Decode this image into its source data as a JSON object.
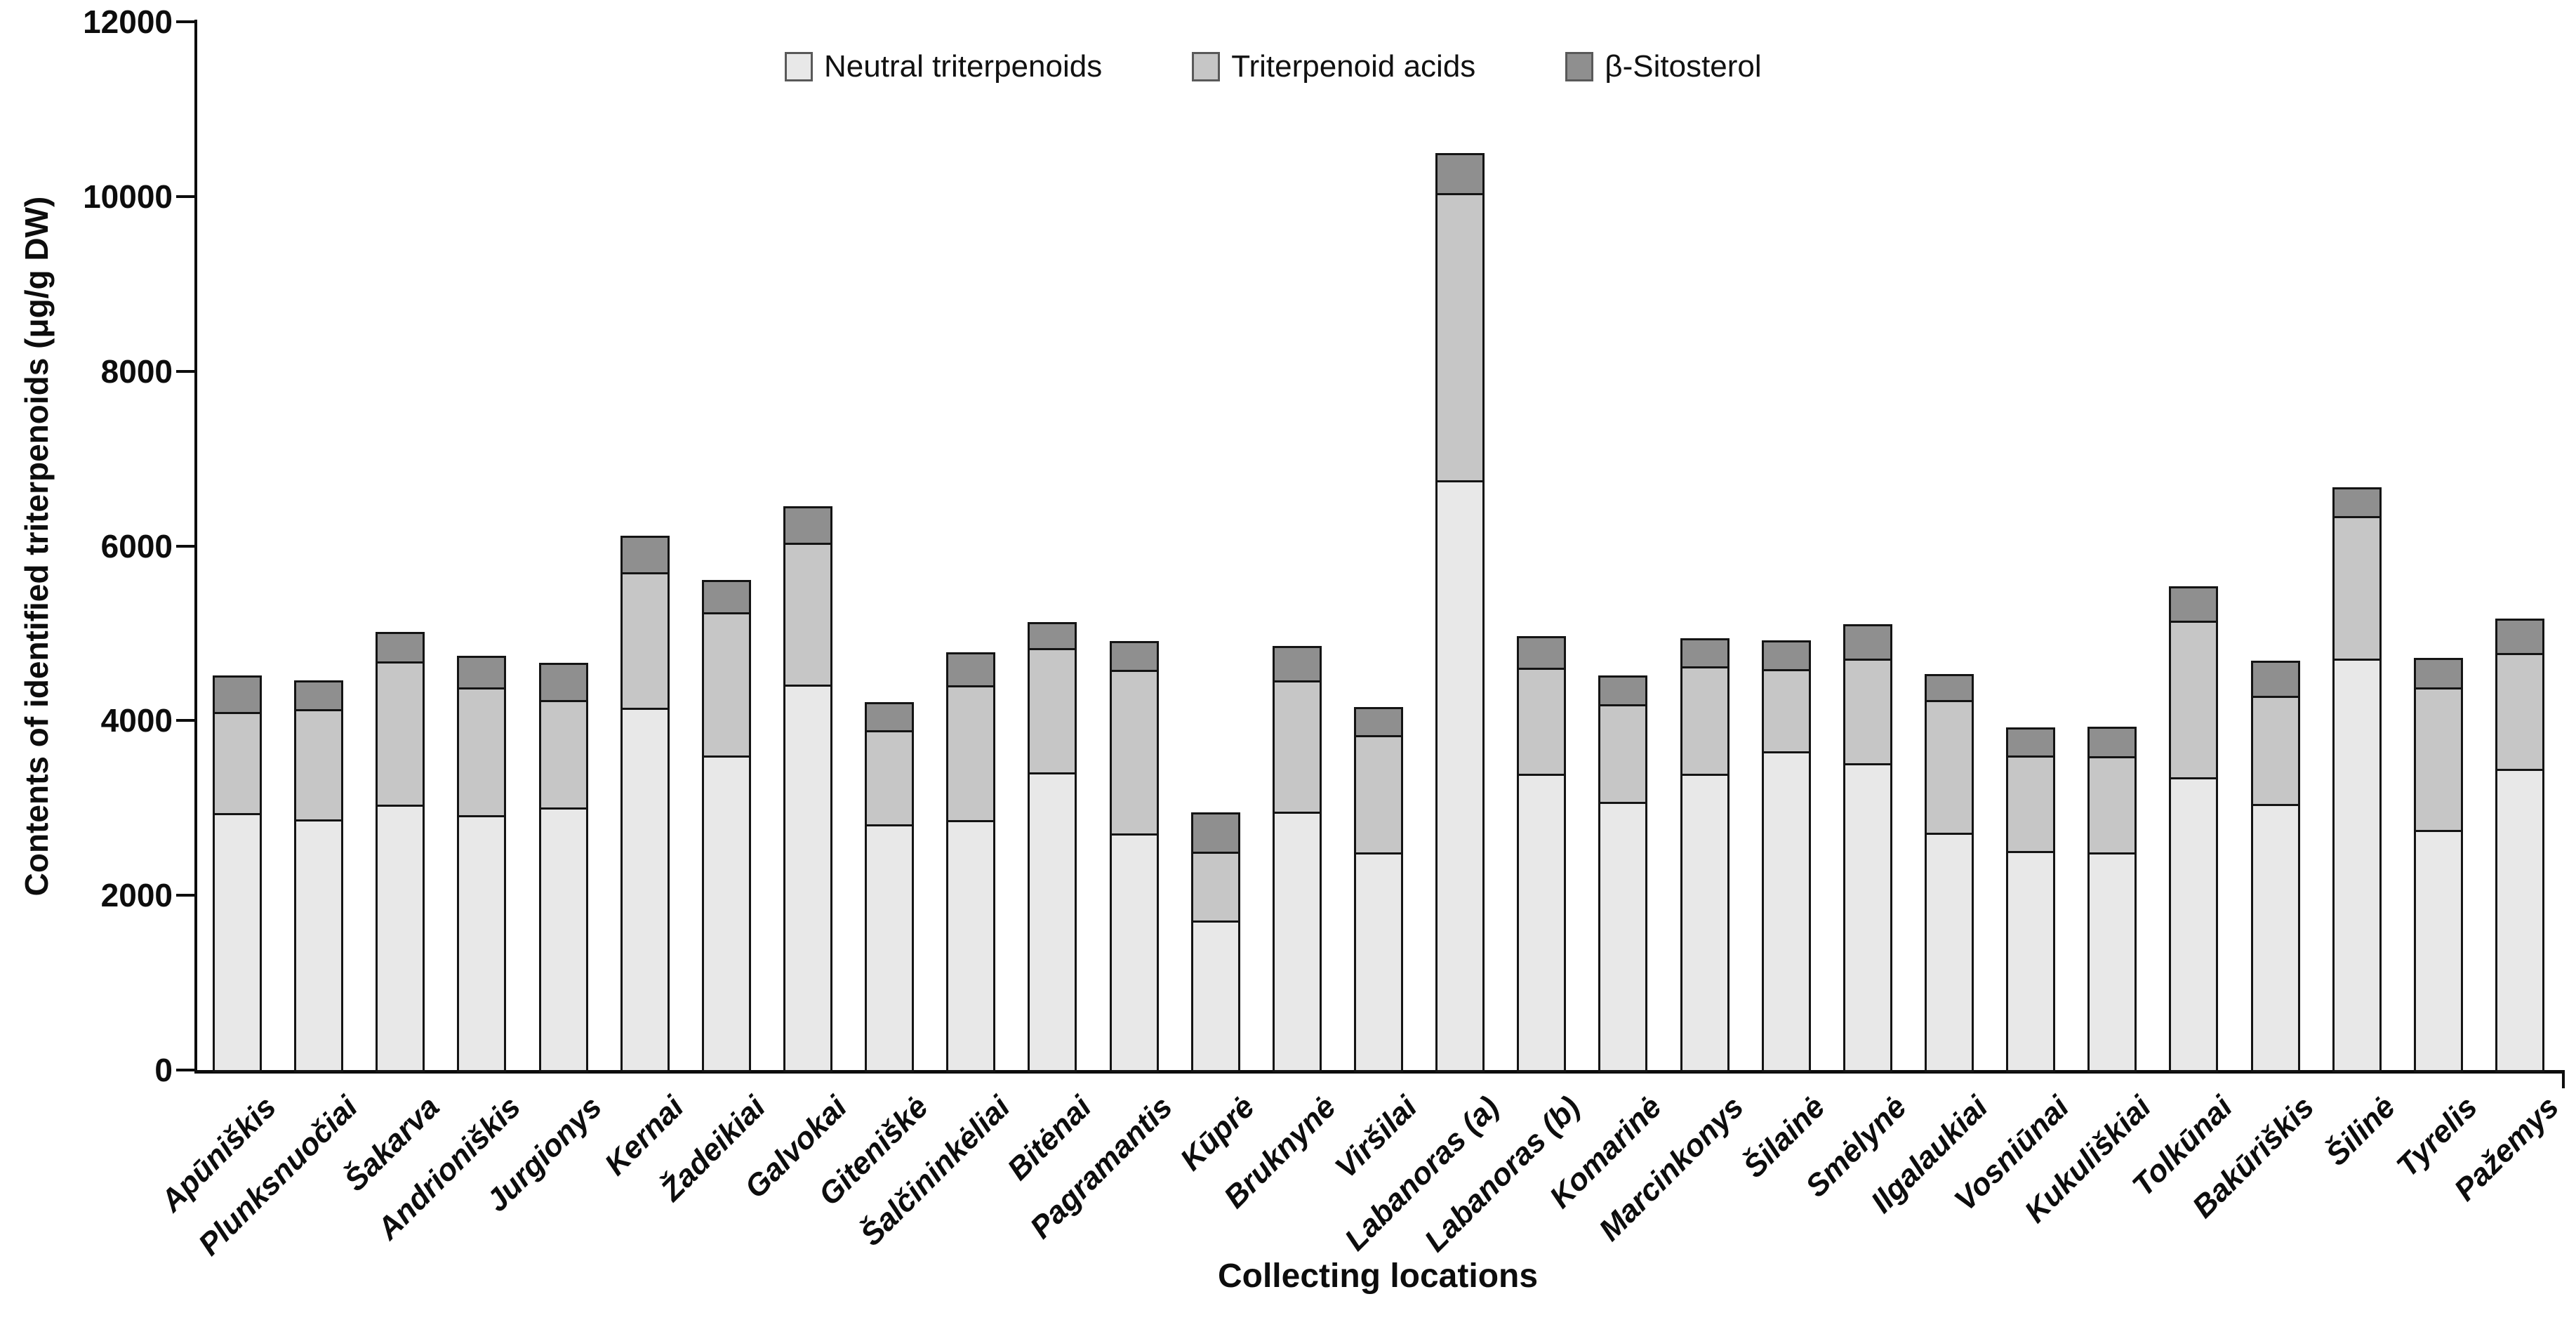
{
  "chart_data": {
    "type": "bar",
    "stacked": true,
    "title": "",
    "xlabel": "Collecting locations",
    "ylabel": "Contents of identified triterpenoids (μg/g DW)",
    "ylim": [
      0,
      12000
    ],
    "yticks": [
      0,
      2000,
      4000,
      6000,
      8000,
      10000,
      12000
    ],
    "grid": false,
    "legend_position": "top-center",
    "bar_border_color": "#141414",
    "axis_color": "#0d0d0d",
    "categories": [
      "Apūniškis",
      "Plunksnuočiai",
      "Šakarva",
      "Andrioniškis",
      "Jurgionys",
      "Kernai",
      "Žadeikiai",
      "Galvokai",
      "Giteniškė",
      "Šalčininkėliai",
      "Bitėnai",
      "Pagramantis",
      "Kūprė",
      "Bruknynė",
      "Viršilai",
      "Labanoras (a)",
      "Labanoras (b)",
      "Komarinė",
      "Marcinkonys",
      "Šilainė",
      "Smėlynė",
      "Ilgalaukiai",
      "Vosniūnai",
      "Kukuliškiai",
      "Tolkūnai",
      "Bakūriškis",
      "Šilinė",
      "Tyrelis",
      "Pažemys"
    ],
    "series": [
      {
        "name": "Neutral triterpenoids",
        "color": "#e8e8e8",
        "values": [
          2940,
          2870,
          3040,
          2920,
          3010,
          4150,
          3600,
          4410,
          2810,
          2860,
          3410,
          2710,
          1710,
          2960,
          2490,
          6750,
          3390,
          3070,
          3390,
          3650,
          3510,
          2720,
          2510,
          2490,
          3350,
          3050,
          4710,
          2750,
          3450
        ]
      },
      {
        "name": "Triterpenoid acids",
        "color": "#c6c6c6",
        "values": [
          1160,
          1260,
          1640,
          1460,
          1230,
          1550,
          1640,
          1620,
          1080,
          1540,
          1420,
          1870,
          790,
          1500,
          1340,
          3290,
          1210,
          1120,
          1230,
          940,
          1200,
          1520,
          1090,
          1100,
          1790,
          1240,
          1630,
          1630,
          1330
        ]
      },
      {
        "name": "β-Sitosterol",
        "color": "#8f8f8f",
        "values": [
          420,
          330,
          340,
          360,
          430,
          420,
          370,
          420,
          320,
          380,
          300,
          330,
          450,
          390,
          320,
          460,
          360,
          330,
          320,
          330,
          390,
          300,
          320,
          340,
          390,
          400,
          330,
          340,
          390
        ]
      }
    ]
  }
}
